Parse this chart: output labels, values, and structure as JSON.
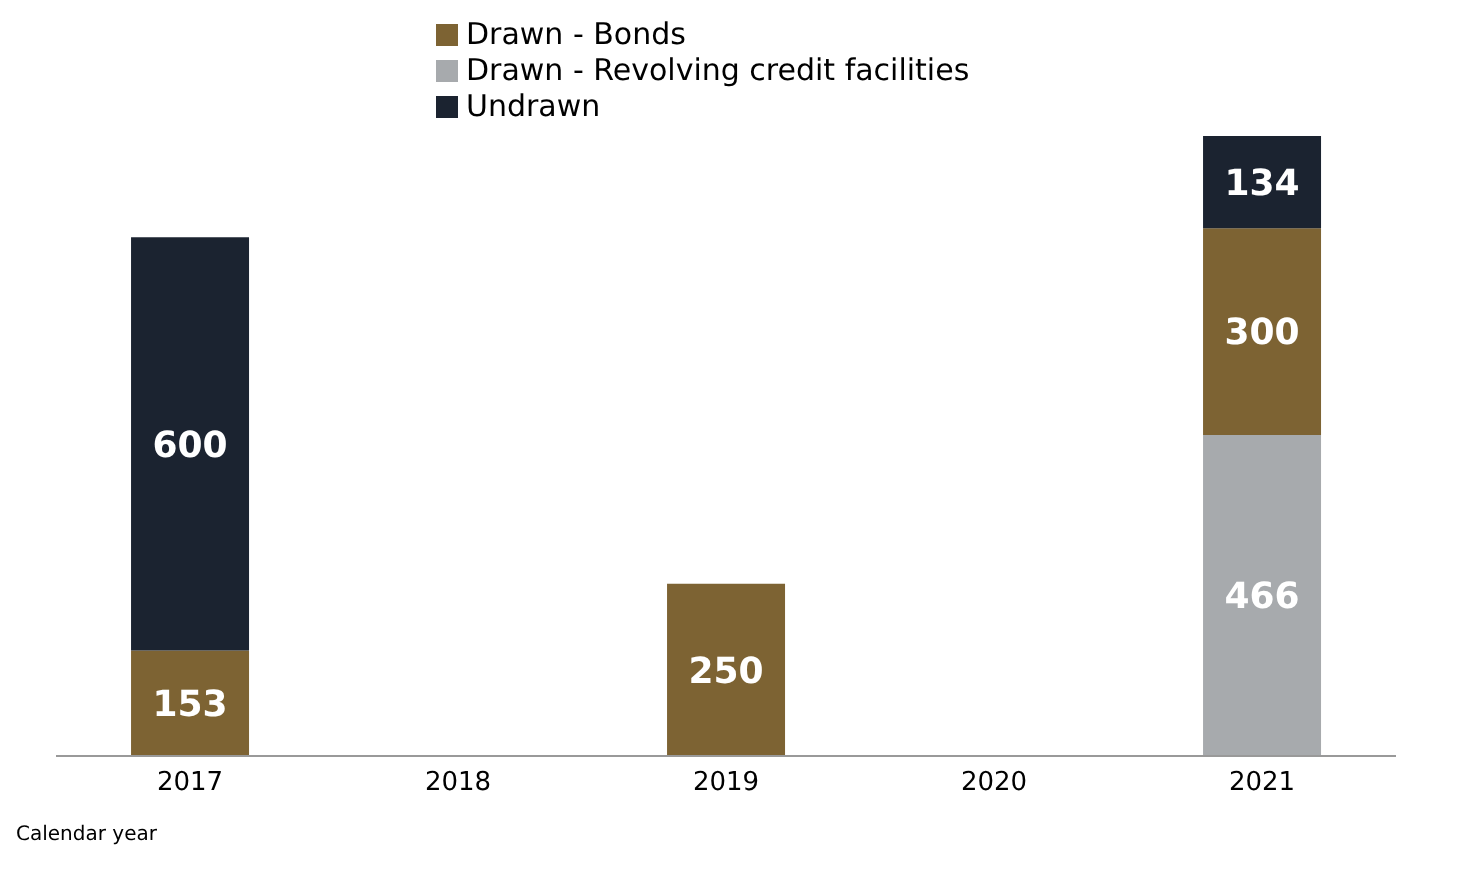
{
  "chart_data": {
    "type": "bar",
    "stacked": true,
    "xlabel": "Calendar year",
    "categories": [
      "2017",
      "2018",
      "2019",
      "2020",
      "2021"
    ],
    "series": [
      {
        "name": "Drawn - Revolving credit facilities",
        "color": "#a7aaad",
        "values": [
          null,
          null,
          null,
          null,
          466
        ]
      },
      {
        "name": "Drawn - Bonds",
        "color": "#7d6333",
        "values": [
          153,
          null,
          250,
          null,
          300
        ]
      },
      {
        "name": "Undrawn",
        "color": "#1b2330",
        "values": [
          600,
          null,
          null,
          null,
          134
        ]
      }
    ],
    "data_labels": true,
    "legend": "top",
    "tick_labels": "x",
    "grid": false
  }
}
